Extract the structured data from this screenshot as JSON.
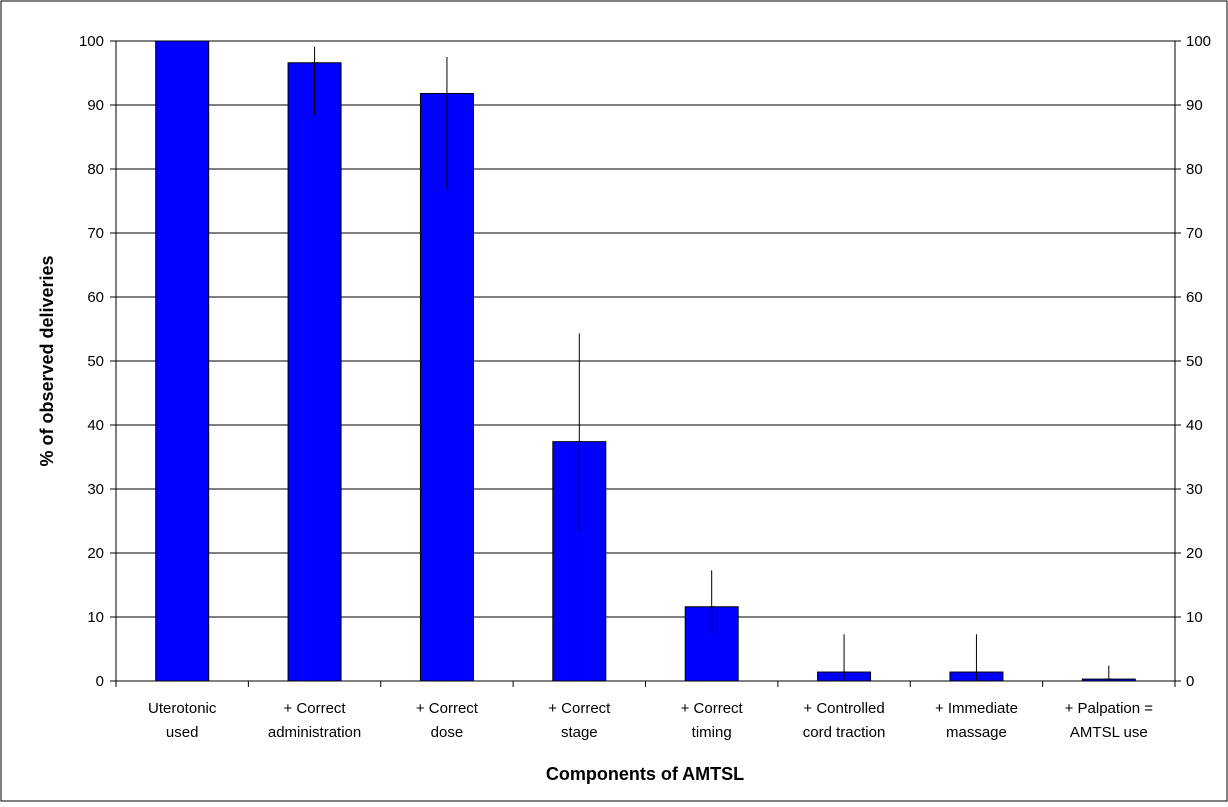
{
  "chart_data": {
    "type": "bar",
    "title": "",
    "xlabel": "Components of AMTSL",
    "ylabel": "% of observed deliveries",
    "ylim": [
      0,
      100
    ],
    "y_ticks": [
      0,
      10,
      20,
      30,
      40,
      50,
      60,
      70,
      80,
      90,
      100
    ],
    "secondary_y_axis": true,
    "grid": "horizontal",
    "legend": "none",
    "categories": [
      [
        "Uterotonic",
        "used"
      ],
      [
        "+ Correct",
        "administration"
      ],
      [
        "+ Correct",
        "dose"
      ],
      [
        "+ Correct",
        "stage"
      ],
      [
        "+ Correct",
        "timing"
      ],
      [
        "+ Controlled",
        "cord traction"
      ],
      [
        "+ Immediate",
        "massage"
      ],
      [
        "+ Palpation =",
        "AMTSL use"
      ]
    ],
    "values": [
      100,
      96.6,
      91.8,
      37.4,
      11.6,
      1.4,
      1.4,
      0.3
    ],
    "error_low": [
      100,
      88.5,
      76.9,
      23.1,
      7.3,
      0,
      0,
      0
    ],
    "error_high": [
      100,
      99.1,
      97.5,
      54.3,
      17.3,
      7.3,
      7.3,
      2.4
    ],
    "colors": {
      "bar_fill": "#0000ff",
      "bar_stroke": "#000000",
      "grid": "#000000",
      "frame": "#000000"
    }
  }
}
